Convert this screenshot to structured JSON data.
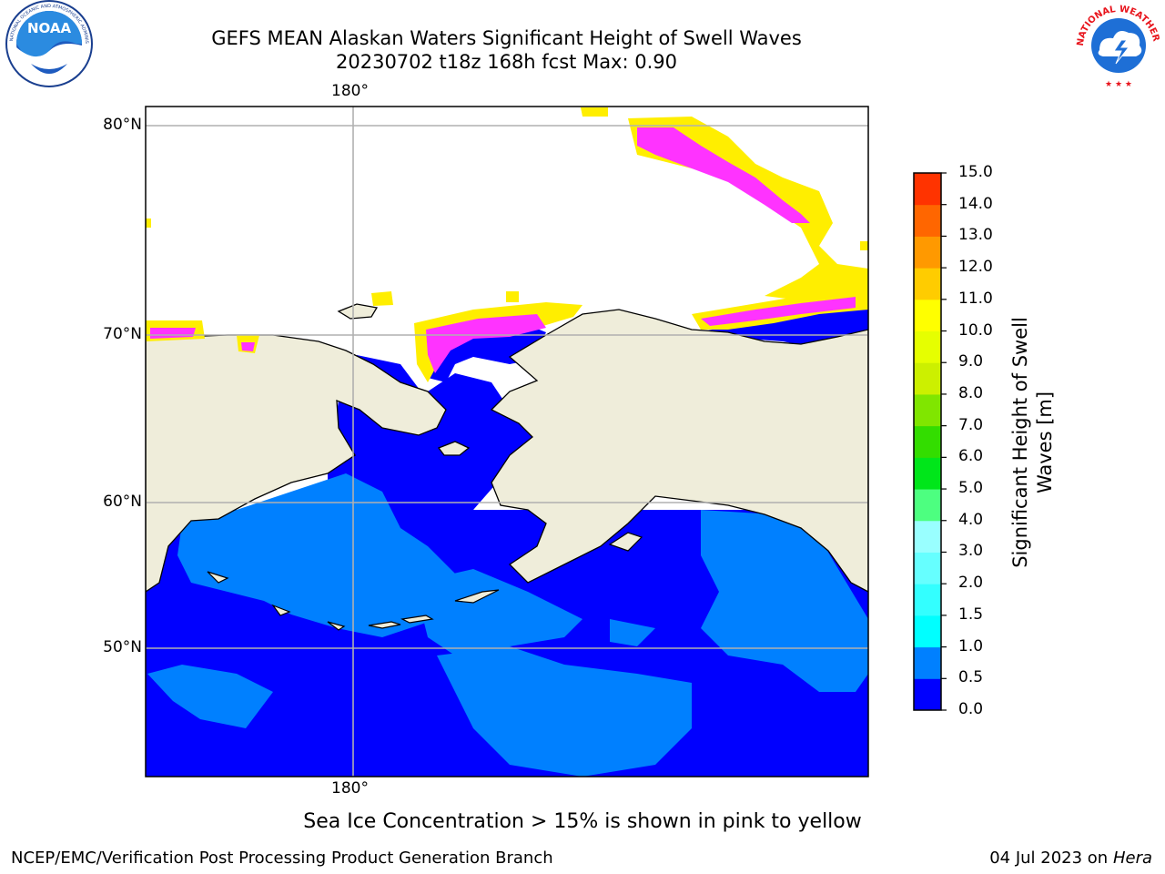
{
  "header": {
    "title_line1": "GEFS MEAN Alaskan Waters Significant Height of Swell Waves",
    "title_line2": "20230702 t18z 168h fcst   Max: 0.90"
  },
  "logos": {
    "left": {
      "name": "NOAA",
      "ring_text": "NATIONAL OCEANIC AND ATMOSPHERIC ADMINISTRATION · U.S. DEPARTMENT OF COMMERCE"
    },
    "right": {
      "name": "NATIONAL WEATHER SERVICE"
    }
  },
  "map": {
    "lat_labels": [
      "80°N",
      "70°N",
      "60°N",
      "50°N"
    ],
    "lon_label_top": "180°",
    "lon_label_bottom": "180°",
    "colors": {
      "land": "#efedda",
      "deep_ocean": "#0000ff",
      "swell_0_5_1_0": "#0080ff",
      "ice_pink": "#ff33ff",
      "ice_yellow": "#ffee00",
      "grid": "#b0b0b0"
    }
  },
  "colorbar": {
    "label": "Significant Height of Swell Waves [m]",
    "label_line1": "Significant Height of Swell",
    "label_line2": "Waves [m]",
    "ticks": [
      "0.0",
      "0.5",
      "1.0",
      "1.5",
      "2.0",
      "3.0",
      "4.0",
      "5.0",
      "6.0",
      "7.0",
      "8.0",
      "9.0",
      "10.0",
      "11.0",
      "12.0",
      "13.0",
      "14.0",
      "15.0"
    ],
    "colors": [
      "#0000ff",
      "#0080ff",
      "#00ffff",
      "#33ffff",
      "#66ffff",
      "#99ffff",
      "#4dff80",
      "#00e61a",
      "#33dd00",
      "#80e600",
      "#ccf000",
      "#e6ff00",
      "#ffff00",
      "#ffcc00",
      "#ff9900",
      "#ff6600",
      "#ff3300",
      "#ff0000"
    ]
  },
  "caption": "Sea Ice Concentration > 15% is shown in pink to yellow",
  "footer": {
    "left": "NCEP/EMC/Verification Post Processing Product Generation Branch",
    "right_date": "04 Jul 2023 on ",
    "right_host": "Hera"
  }
}
